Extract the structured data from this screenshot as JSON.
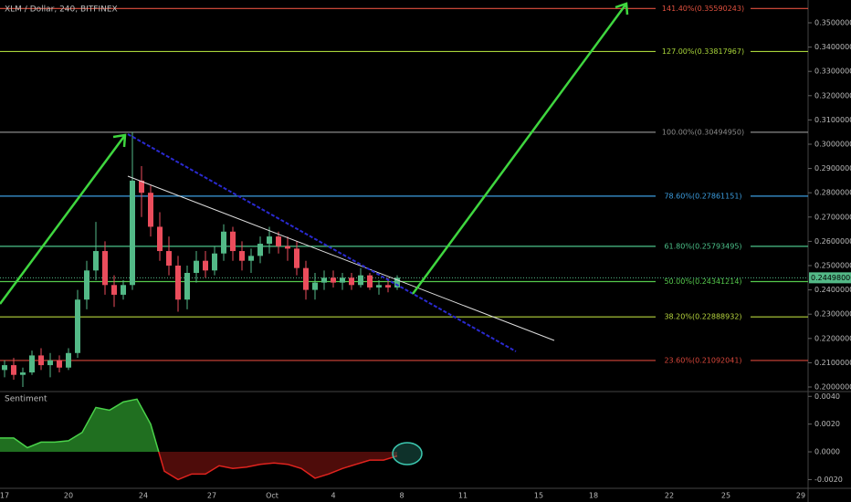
{
  "chart_data": [
    {
      "type": "candlestick",
      "title": "XLM / Dollar, 240, BITFINEX",
      "candles": [
        [
          0.207,
          0.211,
          0.204,
          0.209
        ],
        [
          0.209,
          0.212,
          0.203,
          0.205
        ],
        [
          0.205,
          0.208,
          0.2,
          0.206
        ],
        [
          0.206,
          0.215,
          0.205,
          0.213
        ],
        [
          0.213,
          0.216,
          0.207,
          0.209
        ],
        [
          0.209,
          0.214,
          0.204,
          0.211
        ],
        [
          0.211,
          0.213,
          0.206,
          0.208
        ],
        [
          0.208,
          0.216,
          0.207,
          0.214
        ],
        [
          0.214,
          0.24,
          0.212,
          0.236
        ],
        [
          0.236,
          0.252,
          0.232,
          0.248
        ],
        [
          0.248,
          0.268,
          0.244,
          0.256
        ],
        [
          0.256,
          0.26,
          0.238,
          0.242
        ],
        [
          0.242,
          0.246,
          0.233,
          0.238
        ],
        [
          0.238,
          0.244,
          0.236,
          0.242
        ],
        [
          0.242,
          0.305,
          0.24,
          0.285
        ],
        [
          0.285,
          0.291,
          0.27,
          0.28
        ],
        [
          0.28,
          0.283,
          0.262,
          0.266
        ],
        [
          0.266,
          0.272,
          0.252,
          0.256
        ],
        [
          0.256,
          0.262,
          0.246,
          0.25
        ],
        [
          0.25,
          0.254,
          0.231,
          0.236
        ],
        [
          0.236,
          0.25,
          0.232,
          0.247
        ],
        [
          0.247,
          0.256,
          0.243,
          0.252
        ],
        [
          0.252,
          0.256,
          0.245,
          0.248
        ],
        [
          0.248,
          0.258,
          0.246,
          0.255
        ],
        [
          0.255,
          0.267,
          0.252,
          0.264
        ],
        [
          0.264,
          0.266,
          0.252,
          0.256
        ],
        [
          0.256,
          0.26,
          0.248,
          0.252
        ],
        [
          0.252,
          0.257,
          0.247,
          0.254
        ],
        [
          0.254,
          0.262,
          0.251,
          0.259
        ],
        [
          0.259,
          0.266,
          0.255,
          0.262
        ],
        [
          0.262,
          0.264,
          0.255,
          0.258
        ],
        [
          0.258,
          0.262,
          0.252,
          0.257
        ],
        [
          0.257,
          0.26,
          0.246,
          0.249
        ],
        [
          0.249,
          0.252,
          0.236,
          0.24
        ],
        [
          0.24,
          0.247,
          0.236,
          0.243
        ],
        [
          0.243,
          0.248,
          0.24,
          0.245
        ],
        [
          0.245,
          0.248,
          0.241,
          0.243
        ],
        [
          0.243,
          0.247,
          0.24,
          0.245
        ],
        [
          0.245,
          0.247,
          0.24,
          0.242
        ],
        [
          0.242,
          0.249,
          0.241,
          0.246
        ],
        [
          0.246,
          0.247,
          0.24,
          0.241
        ],
        [
          0.241,
          0.244,
          0.238,
          0.242
        ],
        [
          0.242,
          0.245,
          0.239,
          0.241
        ],
        [
          0.241,
          0.246,
          0.24,
          0.245
        ]
      ],
      "up_color": "#53b987",
      "down_color": "#eb4d5c",
      "ylim": [
        0.1985,
        0.3594
      ],
      "yticks": [
        {
          "value": 0.2,
          "label": "0.20000000"
        },
        {
          "value": 0.21,
          "label": "0.21000000"
        },
        {
          "value": 0.22,
          "label": "0.22000000"
        },
        {
          "value": 0.23,
          "label": "0.23000000"
        },
        {
          "value": 0.24,
          "label": "0.24000000"
        },
        {
          "value": 0.25,
          "label": "0.25000000"
        },
        {
          "value": 0.26,
          "label": "0.26000000"
        },
        {
          "value": 0.27,
          "label": "0.27000000"
        },
        {
          "value": 0.28,
          "label": "0.28000000"
        },
        {
          "value": 0.29,
          "label": "0.29000000"
        },
        {
          "value": 0.3,
          "label": "0.30000000"
        },
        {
          "value": 0.31,
          "label": "0.31000000"
        },
        {
          "value": 0.32,
          "label": "0.32000000"
        },
        {
          "value": 0.33,
          "label": "0.33000000"
        },
        {
          "value": 0.34,
          "label": "0.34000000"
        },
        {
          "value": 0.35,
          "label": "0.35000000"
        }
      ],
      "last_price": {
        "value": 0.24498,
        "label": "0.24498000"
      },
      "levels": [
        {
          "value": 0.35590243,
          "label": "141.40%(0.35590243)",
          "color": "#e0513f"
        },
        {
          "value": 0.33817967,
          "label": "127.00%(0.33817967)",
          "color": "#a8d43a"
        },
        {
          "value": 0.3049495,
          "label": "100.00%(0.30494950)",
          "color": "#8a8a8a"
        },
        {
          "value": 0.27861151,
          "label": "78.60%(0.27861151)",
          "color": "#3c9ee0"
        },
        {
          "value": 0.25793495,
          "label": "61.80%(0.25793495)",
          "color": "#4cc28a"
        },
        {
          "value": 0.24341214,
          "label": "50.00%(0.24341214)",
          "color": "#55c84b"
        },
        {
          "value": 0.22888932,
          "label": "38.20%(0.22888932)",
          "color": "#b6d43e"
        },
        {
          "value": 0.21092041,
          "label": "23.60%(0.21092041)",
          "color": "#d6463a"
        }
      ],
      "x_labels": [
        "17",
        "20",
        "24",
        "27",
        "Oct",
        "4",
        "8",
        "11",
        "15",
        "18",
        "22",
        "25",
        "29"
      ]
    },
    {
      "type": "area",
      "title": "Sentiment",
      "values": [
        0.001,
        0.001,
        0.0003,
        0.0007,
        0.0007,
        0.0008,
        0.0014,
        0.0032,
        0.003,
        0.0036,
        0.0038,
        0.002,
        -0.0014,
        -0.002,
        -0.0016,
        -0.0016,
        -0.001,
        -0.0012,
        -0.0011,
        -0.0009,
        -0.0008,
        -0.0009,
        -0.0012,
        -0.0019,
        -0.0016,
        -0.0012,
        -0.0009,
        -0.0006,
        -0.0006,
        -0.0003
      ],
      "pos_color": "#2e9e2e",
      "neg_color": "#e0231e",
      "ylim": [
        -0.00263,
        0.00428
      ],
      "yticks": [
        {
          "value": 0.004,
          "label": "0.0040"
        },
        {
          "value": 0.002,
          "label": "0.0020"
        },
        {
          "value": 0,
          "label": "0.0000"
        },
        {
          "value": -0.002,
          "label": "-0.0020"
        }
      ]
    }
  ]
}
